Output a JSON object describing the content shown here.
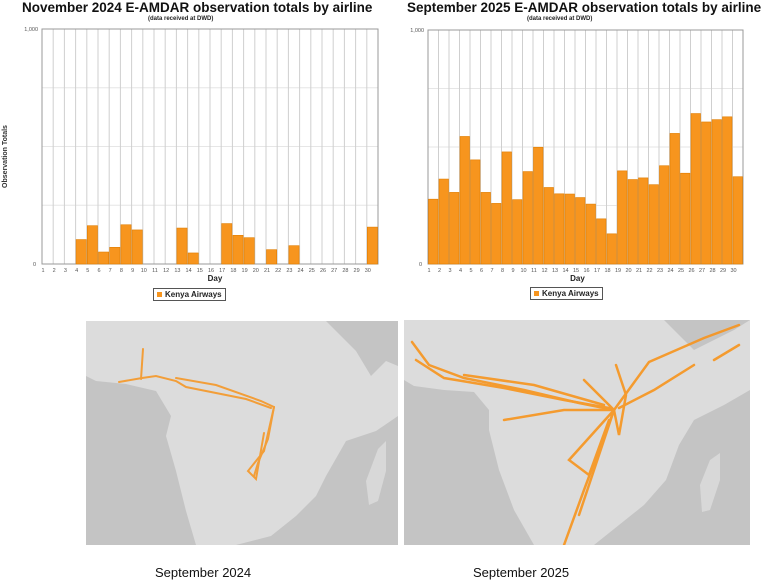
{
  "chart_data": [
    {
      "type": "bar",
      "title": "November 2024 E-AMDAR observation totals by airline",
      "subtitle": "(data received at DWD)",
      "xlabel": "Day",
      "ylabel": "Observation Totals",
      "ylim": [
        0,
        1000
      ],
      "yticks": [
        "0",
        "1,000"
      ],
      "grid": true,
      "legend_position": "bottom",
      "categories": [
        1,
        2,
        3,
        4,
        5,
        6,
        7,
        8,
        9,
        10,
        11,
        12,
        13,
        14,
        15,
        16,
        17,
        18,
        19,
        20,
        21,
        22,
        23,
        24,
        25,
        26,
        27,
        28,
        29,
        30
      ],
      "series": [
        {
          "name": "Kenya Airways",
          "color": "#f7951e",
          "values": [
            0,
            0,
            0,
            104,
            163,
            51,
            71,
            167,
            145,
            0,
            0,
            0,
            153,
            47,
            0,
            0,
            172,
            122,
            112,
            0,
            61,
            0,
            78,
            0,
            0,
            0,
            0,
            0,
            0,
            157
          ]
        }
      ]
    },
    {
      "type": "bar",
      "title": "September 2025 E-AMDAR observation totals by airline",
      "subtitle": "(data received at DWD)",
      "xlabel": "Day",
      "ylabel": "",
      "ylim": [
        0,
        1000
      ],
      "yticks": [
        "0",
        "1,000"
      ],
      "grid": true,
      "legend_position": "bottom",
      "categories": [
        1,
        2,
        3,
        4,
        5,
        6,
        7,
        8,
        9,
        10,
        11,
        12,
        13,
        14,
        15,
        16,
        17,
        18,
        19,
        20,
        21,
        22,
        23,
        24,
        25,
        26,
        27,
        28,
        29,
        30
      ],
      "series": [
        {
          "name": "Kenya Airways",
          "color": "#f7951e",
          "values": [
            277,
            363,
            306,
            545,
            445,
            306,
            259,
            479,
            275,
            395,
            499,
            327,
            300,
            299,
            284,
            256,
            193,
            129,
            398,
            361,
            368,
            339,
            420,
            558,
            388,
            643,
            607,
            617,
            629,
            373
          ]
        }
      ]
    }
  ],
  "maps": [
    {
      "caption": "September 2024",
      "track_color": "#f7941d"
    },
    {
      "caption": "September 2025",
      "track_color": "#f7941d"
    }
  ]
}
